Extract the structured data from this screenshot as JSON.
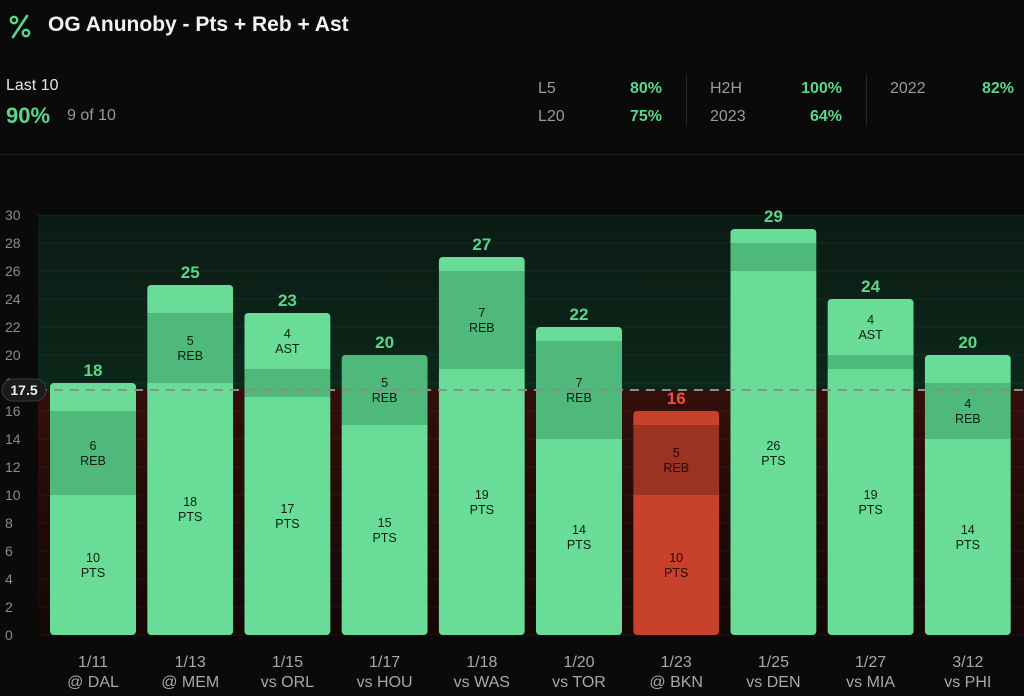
{
  "header": {
    "title": "OG Anunoby - Pts + Reb + Ast",
    "logo_icon": "percent-icon"
  },
  "summary": {
    "last_label": "Last 10",
    "last_pct": "90%",
    "last_count": "9 of 10",
    "stats": [
      {
        "key": "L5",
        "value": "80%"
      },
      {
        "key": "L20",
        "value": "75%"
      },
      {
        "key": "H2H",
        "value": "100%"
      },
      {
        "key": "2023",
        "value": "64%"
      },
      {
        "key": "2022",
        "value": "82%"
      }
    ]
  },
  "colors": {
    "hit": "#69dc97",
    "hit_mid": "#4fb97b",
    "miss": "#c8412b",
    "miss_mid": "#9a3322",
    "total_hit": "#5cd68a",
    "total_miss": "#e8553c"
  },
  "chart_data": {
    "type": "bar",
    "stacked": true,
    "ylim": [
      0,
      30
    ],
    "y_ticks": [
      0,
      2,
      4,
      6,
      8,
      10,
      12,
      14,
      16,
      18,
      20,
      22,
      24,
      26,
      28,
      30
    ],
    "line": 17.5,
    "line_label": "17.5",
    "categories": [
      {
        "date": "1/11",
        "opp": "@ DAL"
      },
      {
        "date": "1/13",
        "opp": "@ MEM"
      },
      {
        "date": "1/15",
        "opp": "vs ORL"
      },
      {
        "date": "1/17",
        "opp": "vs HOU"
      },
      {
        "date": "1/18",
        "opp": "vs WAS"
      },
      {
        "date": "1/20",
        "opp": "vs TOR"
      },
      {
        "date": "1/23",
        "opp": "@ BKN"
      },
      {
        "date": "1/25",
        "opp": "vs DEN"
      },
      {
        "date": "1/27",
        "opp": "vs MIA"
      },
      {
        "date": "3/12",
        "opp": "vs PHI"
      }
    ],
    "totals": [
      18,
      25,
      23,
      20,
      27,
      22,
      16,
      29,
      24,
      20
    ],
    "series": [
      {
        "name": "PTS",
        "values": [
          10,
          18,
          17,
          15,
          19,
          14,
          10,
          26,
          19,
          14
        ]
      },
      {
        "name": "REB",
        "values": [
          6,
          5,
          2,
          5,
          7,
          7,
          5,
          2,
          1,
          4
        ]
      },
      {
        "name": "AST",
        "values": [
          2,
          2,
          4,
          0,
          1,
          1,
          1,
          1,
          4,
          2
        ]
      }
    ],
    "segment_labels": [
      [
        {
          "v": "10",
          "t": "PTS"
        },
        {
          "v": "6",
          "t": "REB"
        },
        null
      ],
      [
        {
          "v": "18",
          "t": "PTS"
        },
        {
          "v": "5",
          "t": "REB"
        },
        null
      ],
      [
        {
          "v": "17",
          "t": "PTS"
        },
        null,
        {
          "v": "4",
          "t": "AST"
        }
      ],
      [
        {
          "v": "15",
          "t": "PTS"
        },
        {
          "v": "5",
          "t": "REB"
        },
        null
      ],
      [
        {
          "v": "19",
          "t": "PTS"
        },
        {
          "v": "7",
          "t": "REB"
        },
        null
      ],
      [
        {
          "v": "14",
          "t": "PTS"
        },
        {
          "v": "7",
          "t": "REB"
        },
        null
      ],
      [
        {
          "v": "10",
          "t": "PTS"
        },
        {
          "v": "5",
          "t": "REB"
        },
        null
      ],
      [
        {
          "v": "26",
          "t": "PTS"
        },
        null,
        null
      ],
      [
        {
          "v": "19",
          "t": "PTS"
        },
        null,
        {
          "v": "4",
          "t": "AST"
        }
      ],
      [
        {
          "v": "14",
          "t": "PTS"
        },
        {
          "v": "4",
          "t": "REB"
        },
        null
      ]
    ]
  }
}
